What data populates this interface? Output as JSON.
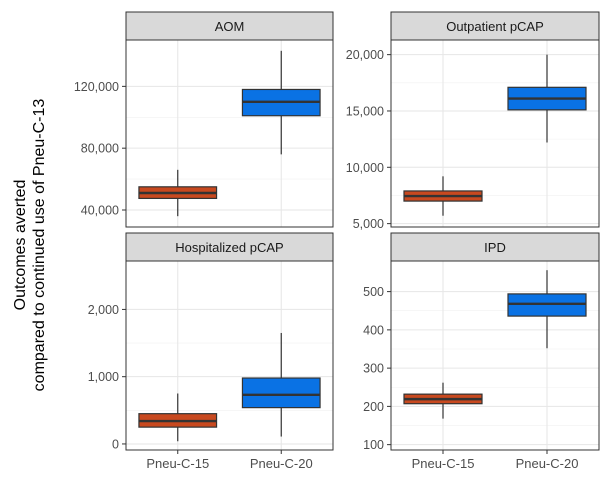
{
  "chart_data": {
    "type": "boxplot-facets",
    "ylabel_lines": [
      "Outcomes averted",
      "compared to continued use of Pneu-C-13"
    ],
    "categories": [
      "Pneu-C-15",
      "Pneu-C-20"
    ],
    "series_colors": {
      "Pneu-C-15": "#c8491f",
      "Pneu-C-20": "#0a72e4"
    },
    "facets": [
      {
        "title": "AOM",
        "ylim": [
          29000,
          150000
        ],
        "ticks": [
          40000,
          80000,
          120000
        ],
        "tick_labels": [
          "40,000",
          "80,000",
          "120,000"
        ],
        "boxes": [
          {
            "category": "Pneu-C-15",
            "min": 36000,
            "q1": 47500,
            "median": 51000,
            "q3": 55000,
            "max": 66000
          },
          {
            "category": "Pneu-C-20",
            "min": 76000,
            "q1": 101000,
            "median": 110000,
            "q3": 118000,
            "max": 143000
          }
        ]
      },
      {
        "title": "Outpatient pCAP",
        "ylim": [
          4700,
          21300
        ],
        "ticks": [
          5000,
          10000,
          15000,
          20000
        ],
        "tick_labels": [
          "5,000",
          "10,000",
          "15,000",
          "20,000"
        ],
        "boxes": [
          {
            "category": "Pneu-C-15",
            "min": 5700,
            "q1": 7000,
            "median": 7450,
            "q3": 7900,
            "max": 9200
          },
          {
            "category": "Pneu-C-20",
            "min": 12200,
            "q1": 15100,
            "median": 16100,
            "q3": 17100,
            "max": 20000
          }
        ]
      },
      {
        "title": "Hospitalized pCAP",
        "ylim": [
          -90,
          2720
        ],
        "ticks": [
          0,
          1000,
          2000
        ],
        "tick_labels": [
          "0",
          "1,000",
          "2,000"
        ],
        "boxes": [
          {
            "category": "Pneu-C-15",
            "min": 40,
            "q1": 250,
            "median": 340,
            "q3": 450,
            "max": 750
          },
          {
            "category": "Pneu-C-20",
            "min": 110,
            "q1": 540,
            "median": 730,
            "q3": 980,
            "max": 1650
          }
        ]
      },
      {
        "title": "IPD",
        "ylim": [
          86,
          580
        ],
        "ticks": [
          100,
          200,
          300,
          400,
          500
        ],
        "tick_labels": [
          "100",
          "200",
          "300",
          "400",
          "500"
        ],
        "boxes": [
          {
            "category": "Pneu-C-15",
            "min": 168,
            "q1": 207,
            "median": 219,
            "q3": 232,
            "max": 262
          },
          {
            "category": "Pneu-C-20",
            "min": 352,
            "q1": 436,
            "median": 468,
            "q3": 494,
            "max": 556
          }
        ]
      }
    ]
  }
}
